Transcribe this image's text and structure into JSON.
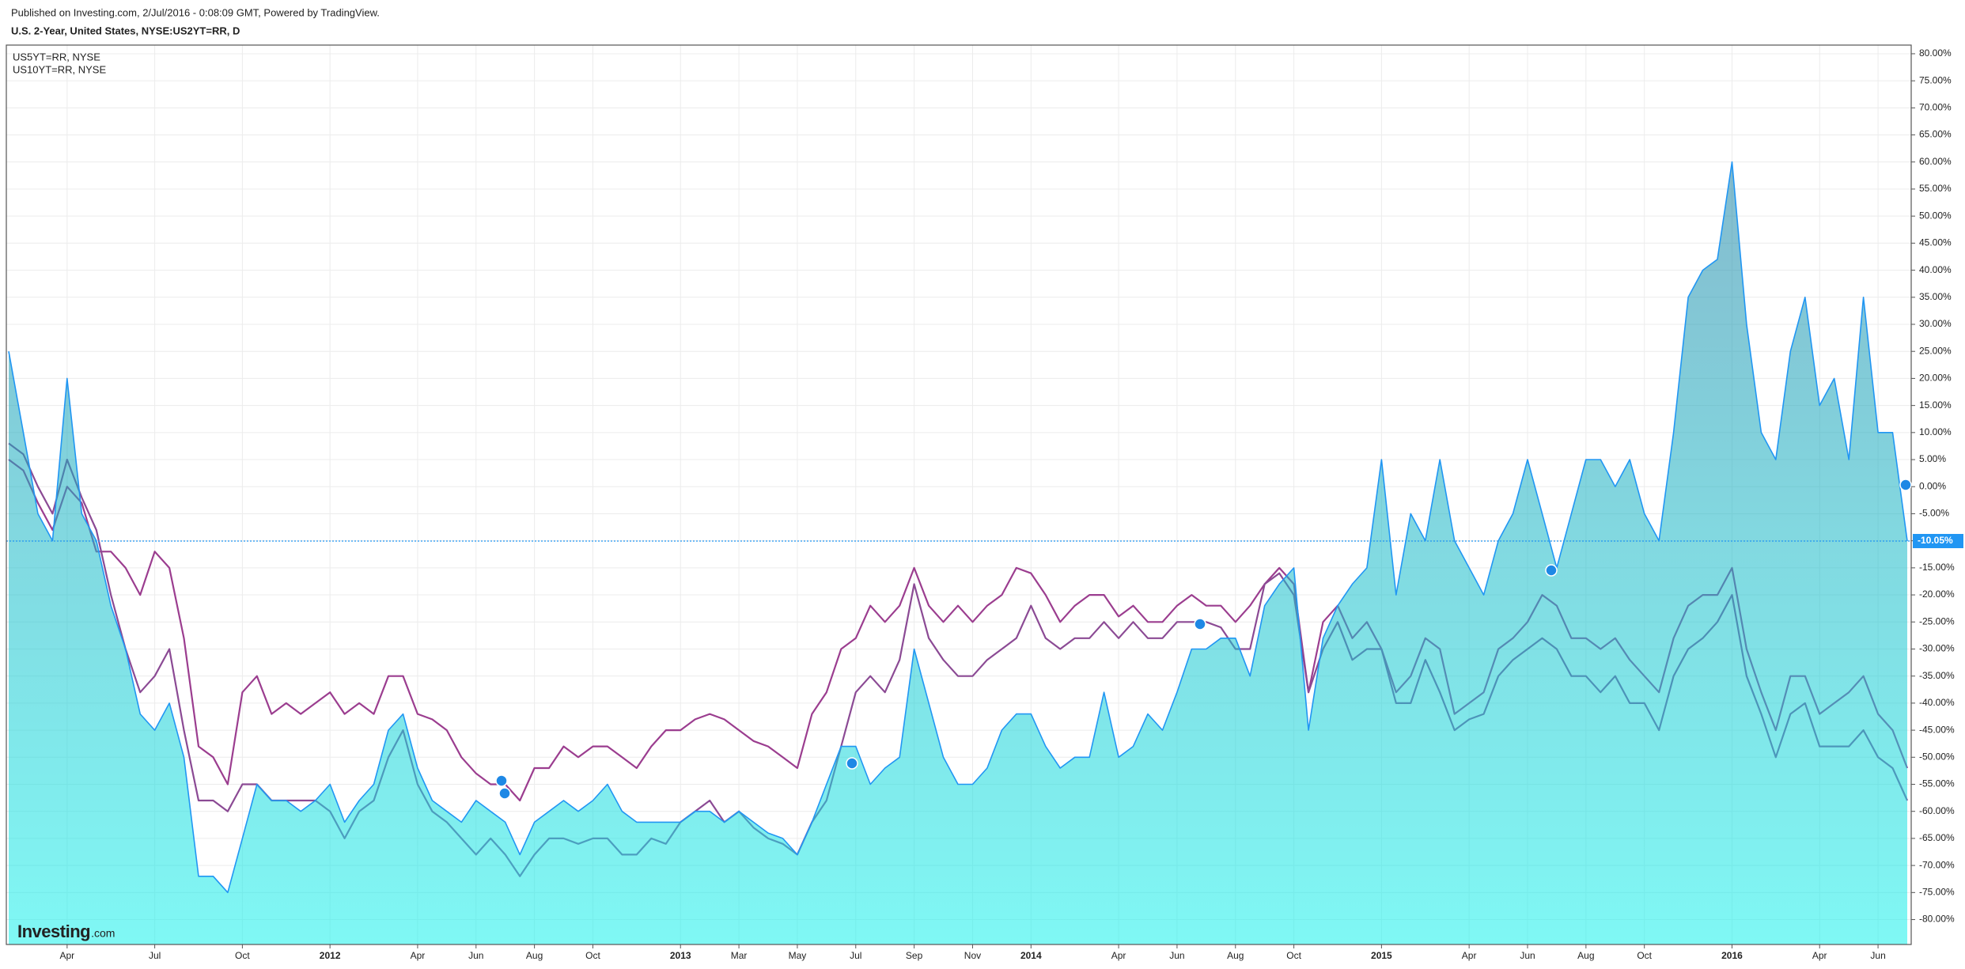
{
  "header": {
    "published": "Published on Investing.com, 2/Jul/2016 - 0:08:09 GMT, Powered by TradingView."
  },
  "watermark": {
    "brand": "Investing",
    "suffix": ".com"
  },
  "chart_data": {
    "type": "area-line",
    "title": "U.S. 2-Year, United States, NYSE:US2YT=RR, D",
    "categories": [
      null,
      null,
      null,
      null,
      "Apr",
      null,
      null,
      null,
      null,
      null,
      "Jul",
      null,
      null,
      null,
      null,
      null,
      "Oct",
      null,
      null,
      null,
      null,
      null,
      "2012",
      null,
      null,
      null,
      null,
      null,
      "Apr",
      null,
      null,
      null,
      "Jun",
      null,
      null,
      null,
      "Aug",
      null,
      null,
      null,
      "Oct",
      null,
      null,
      null,
      null,
      null,
      "2013",
      null,
      null,
      null,
      "Mar",
      null,
      null,
      null,
      "May",
      null,
      null,
      null,
      "Jul",
      null,
      null,
      null,
      "Sep",
      null,
      null,
      null,
      "Nov",
      null,
      null,
      null,
      "2014",
      null,
      null,
      null,
      null,
      null,
      "Apr",
      null,
      null,
      null,
      "Jun",
      null,
      null,
      null,
      "Aug",
      null,
      null,
      null,
      "Oct",
      null,
      null,
      null,
      null,
      null,
      "2015",
      null,
      null,
      null,
      null,
      null,
      "Apr",
      null,
      null,
      null,
      "Jun",
      null,
      null,
      null,
      "Aug",
      null,
      null,
      null,
      "Oct",
      null,
      null,
      null,
      null,
      null,
      "2016",
      null,
      null,
      null,
      null,
      null,
      "Apr",
      null,
      null,
      null,
      "Jun",
      null,
      null
    ],
    "series": [
      {
        "color": "#2196f3",
        "area": true,
        "values": [
          25,
          10,
          -5,
          -10,
          20,
          -5,
          -10,
          -22,
          -30,
          -42,
          -45,
          -40,
          -50,
          -72,
          -72,
          -75,
          -65,
          -55,
          -58,
          -58,
          -60,
          -58,
          -55,
          -62,
          -58,
          -55,
          -45,
          -42,
          -52,
          -58,
          -60,
          -62,
          -58,
          -60,
          -62,
          -68,
          -62,
          -60,
          -58,
          -60,
          -58,
          -55,
          -60,
          -62,
          -62,
          -62,
          -62,
          -60,
          -60,
          -62,
          -60,
          -62,
          -64,
          -65,
          -68,
          -62,
          -55,
          -48,
          -48,
          -55,
          -52,
          -50,
          -30,
          -40,
          -50,
          -55,
          -55,
          -52,
          -45,
          -42,
          -42,
          -48,
          -52,
          -50,
          -50,
          -38,
          -50,
          -48,
          -42,
          -45,
          -38,
          -30,
          -30,
          -28,
          -28,
          -35,
          -22,
          -18,
          -15,
          -45,
          -28,
          -22,
          -18,
          -15,
          5,
          -20,
          -5,
          -10,
          5,
          -10,
          -15,
          -20,
          -10,
          -5,
          5,
          -5,
          -15,
          -5,
          5,
          5,
          0,
          5,
          -5,
          -10,
          10,
          35,
          40,
          42,
          60,
          30,
          10,
          5,
          25,
          35,
          15,
          20,
          5,
          35,
          10,
          10,
          -10.05
        ]
      },
      {
        "name": "US5YT=RR, NYSE",
        "color": "#9b3d8f",
        "values": [
          5,
          3,
          -3,
          -8,
          0,
          -3,
          -12,
          -12,
          -15,
          -20,
          -12,
          -15,
          -28,
          -48,
          -50,
          -55,
          -38,
          -35,
          -42,
          -40,
          -42,
          -40,
          -38,
          -42,
          -40,
          -42,
          -35,
          -35,
          -42,
          -43,
          -45,
          -50,
          -53,
          -55,
          -55,
          -58,
          -52,
          -52,
          -48,
          -50,
          -48,
          -48,
          -50,
          -52,
          -48,
          -45,
          -45,
          -43,
          -42,
          -43,
          -45,
          -47,
          -48,
          -50,
          -52,
          -42,
          -38,
          -30,
          -28,
          -22,
          -25,
          -22,
          -15,
          -22,
          -25,
          -22,
          -25,
          -22,
          -20,
          -15,
          -16,
          -20,
          -25,
          -22,
          -20,
          -20,
          -24,
          -22,
          -25,
          -25,
          -22,
          -20,
          -22,
          -22,
          -25,
          -22,
          -18,
          -15,
          -18,
          -38,
          -25,
          -22,
          -28,
          -25,
          -30,
          -38,
          -35,
          -28,
          -30,
          -42,
          -40,
          -38,
          -30,
          -28,
          -25,
          -20,
          -22,
          -28,
          -28,
          -30,
          -28,
          -32,
          -35,
          -38,
          -28,
          -22,
          -20,
          -20,
          -15,
          -30,
          -38,
          -45,
          -35,
          -35,
          -42,
          -40,
          -38,
          -35,
          -42,
          -45,
          -52
        ]
      },
      {
        "name": "US10YT=RR, NYSE",
        "color": "#8b4a94",
        "values": [
          8,
          6,
          0,
          -5,
          5,
          -2,
          -8,
          -20,
          -30,
          -38,
          -35,
          -30,
          -45,
          -58,
          -58,
          -60,
          -55,
          -55,
          -58,
          -58,
          -58,
          -58,
          -60,
          -65,
          -60,
          -58,
          -50,
          -45,
          -55,
          -60,
          -62,
          -65,
          -68,
          -65,
          -68,
          -72,
          -68,
          -65,
          -65,
          -66,
          -65,
          -65,
          -68,
          -68,
          -65,
          -66,
          -62,
          -60,
          -58,
          -62,
          -60,
          -63,
          -65,
          -66,
          -68,
          -62,
          -58,
          -48,
          -38,
          -35,
          -38,
          -32,
          -18,
          -28,
          -32,
          -35,
          -35,
          -32,
          -30,
          -28,
          -22,
          -28,
          -30,
          -28,
          -28,
          -25,
          -28,
          -25,
          -28,
          -28,
          -25,
          -25,
          -25,
          -26,
          -30,
          -30,
          -18,
          -16,
          -20,
          -38,
          -30,
          -25,
          -32,
          -30,
          -30,
          -40,
          -40,
          -32,
          -38,
          -45,
          -43,
          -42,
          -35,
          -32,
          -30,
          -28,
          -30,
          -35,
          -35,
          -38,
          -35,
          -40,
          -40,
          -45,
          -35,
          -30,
          -28,
          -25,
          -20,
          -35,
          -42,
          -50,
          -42,
          -40,
          -48,
          -48,
          -48,
          -45,
          -50,
          -52,
          -58
        ]
      }
    ],
    "area_gradient": [
      "#1f7fa2",
      "#16f2ec"
    ],
    "last_price": {
      "value": -10.05,
      "label": "-10.05%"
    },
    "ylim": [
      -84.6,
      81.6
    ],
    "yticks": [
      {
        "value": 80,
        "label": "80.00%"
      },
      {
        "value": 75,
        "label": "75.00%"
      },
      {
        "value": 70,
        "label": "70.00%"
      },
      {
        "value": 65,
        "label": "65.00%"
      },
      {
        "value": 60,
        "label": "60.00%"
      },
      {
        "value": 55,
        "label": "55.00%"
      },
      {
        "value": 50,
        "label": "50.00%"
      },
      {
        "value": 45,
        "label": "45.00%"
      },
      {
        "value": 40,
        "label": "40.00%"
      },
      {
        "value": 35,
        "label": "35.00%"
      },
      {
        "value": 30,
        "label": "30.00%"
      },
      {
        "value": 25,
        "label": "25.00%"
      },
      {
        "value": 20,
        "label": "20.00%"
      },
      {
        "value": 15,
        "label": "15.00%"
      },
      {
        "value": 10,
        "label": "10.00%"
      },
      {
        "value": 5,
        "label": "5.00%"
      },
      {
        "value": 0,
        "label": "0.00%"
      },
      {
        "value": -5,
        "label": "-5.00%"
      },
      {
        "value": -10,
        "label": "-10.00%"
      },
      {
        "value": -15,
        "label": "-15.00%"
      },
      {
        "value": -20,
        "label": "-20.00%"
      },
      {
        "value": -25,
        "label": "-25.00%"
      },
      {
        "value": -30,
        "label": "-30.00%"
      },
      {
        "value": -35,
        "label": "-35.00%"
      },
      {
        "value": -40,
        "label": "-40.00%"
      },
      {
        "value": -45,
        "label": "-45.00%"
      },
      {
        "value": -50,
        "label": "-50.00%"
      },
      {
        "value": -55,
        "label": "-55.00%"
      },
      {
        "value": -60,
        "label": "-60.00%"
      },
      {
        "value": -65,
        "label": "-65.00%"
      },
      {
        "value": -70,
        "label": "-70.00%"
      },
      {
        "value": -75,
        "label": "-75.00%"
      },
      {
        "value": -80,
        "label": "-80.00%"
      }
    ],
    "grid": true
  }
}
